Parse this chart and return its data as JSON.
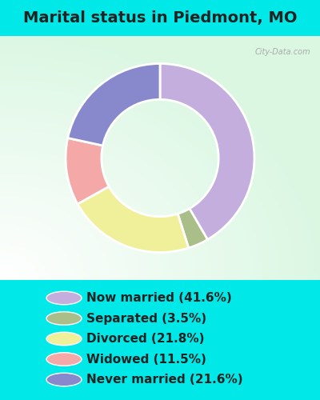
{
  "title": "Marital status in Piedmont, MO",
  "slices": [
    41.6,
    3.5,
    21.8,
    11.5,
    21.6
  ],
  "labels": [
    "Now married (41.6%)",
    "Separated (3.5%)",
    "Divorced (21.8%)",
    "Widowed (11.5%)",
    "Never married (21.6%)"
  ],
  "colors": [
    "#c4aedd",
    "#aabe8a",
    "#f0f09a",
    "#f4a8a8",
    "#8888cc"
  ],
  "bg_cyan": "#00e8e8",
  "chart_bg_left": "#c0e8d0",
  "chart_bg_right": "#e8f4e8",
  "title_fontsize": 14,
  "legend_fontsize": 11,
  "watermark": "City-Data.com",
  "donut_width": 0.38,
  "start_angle": 90
}
